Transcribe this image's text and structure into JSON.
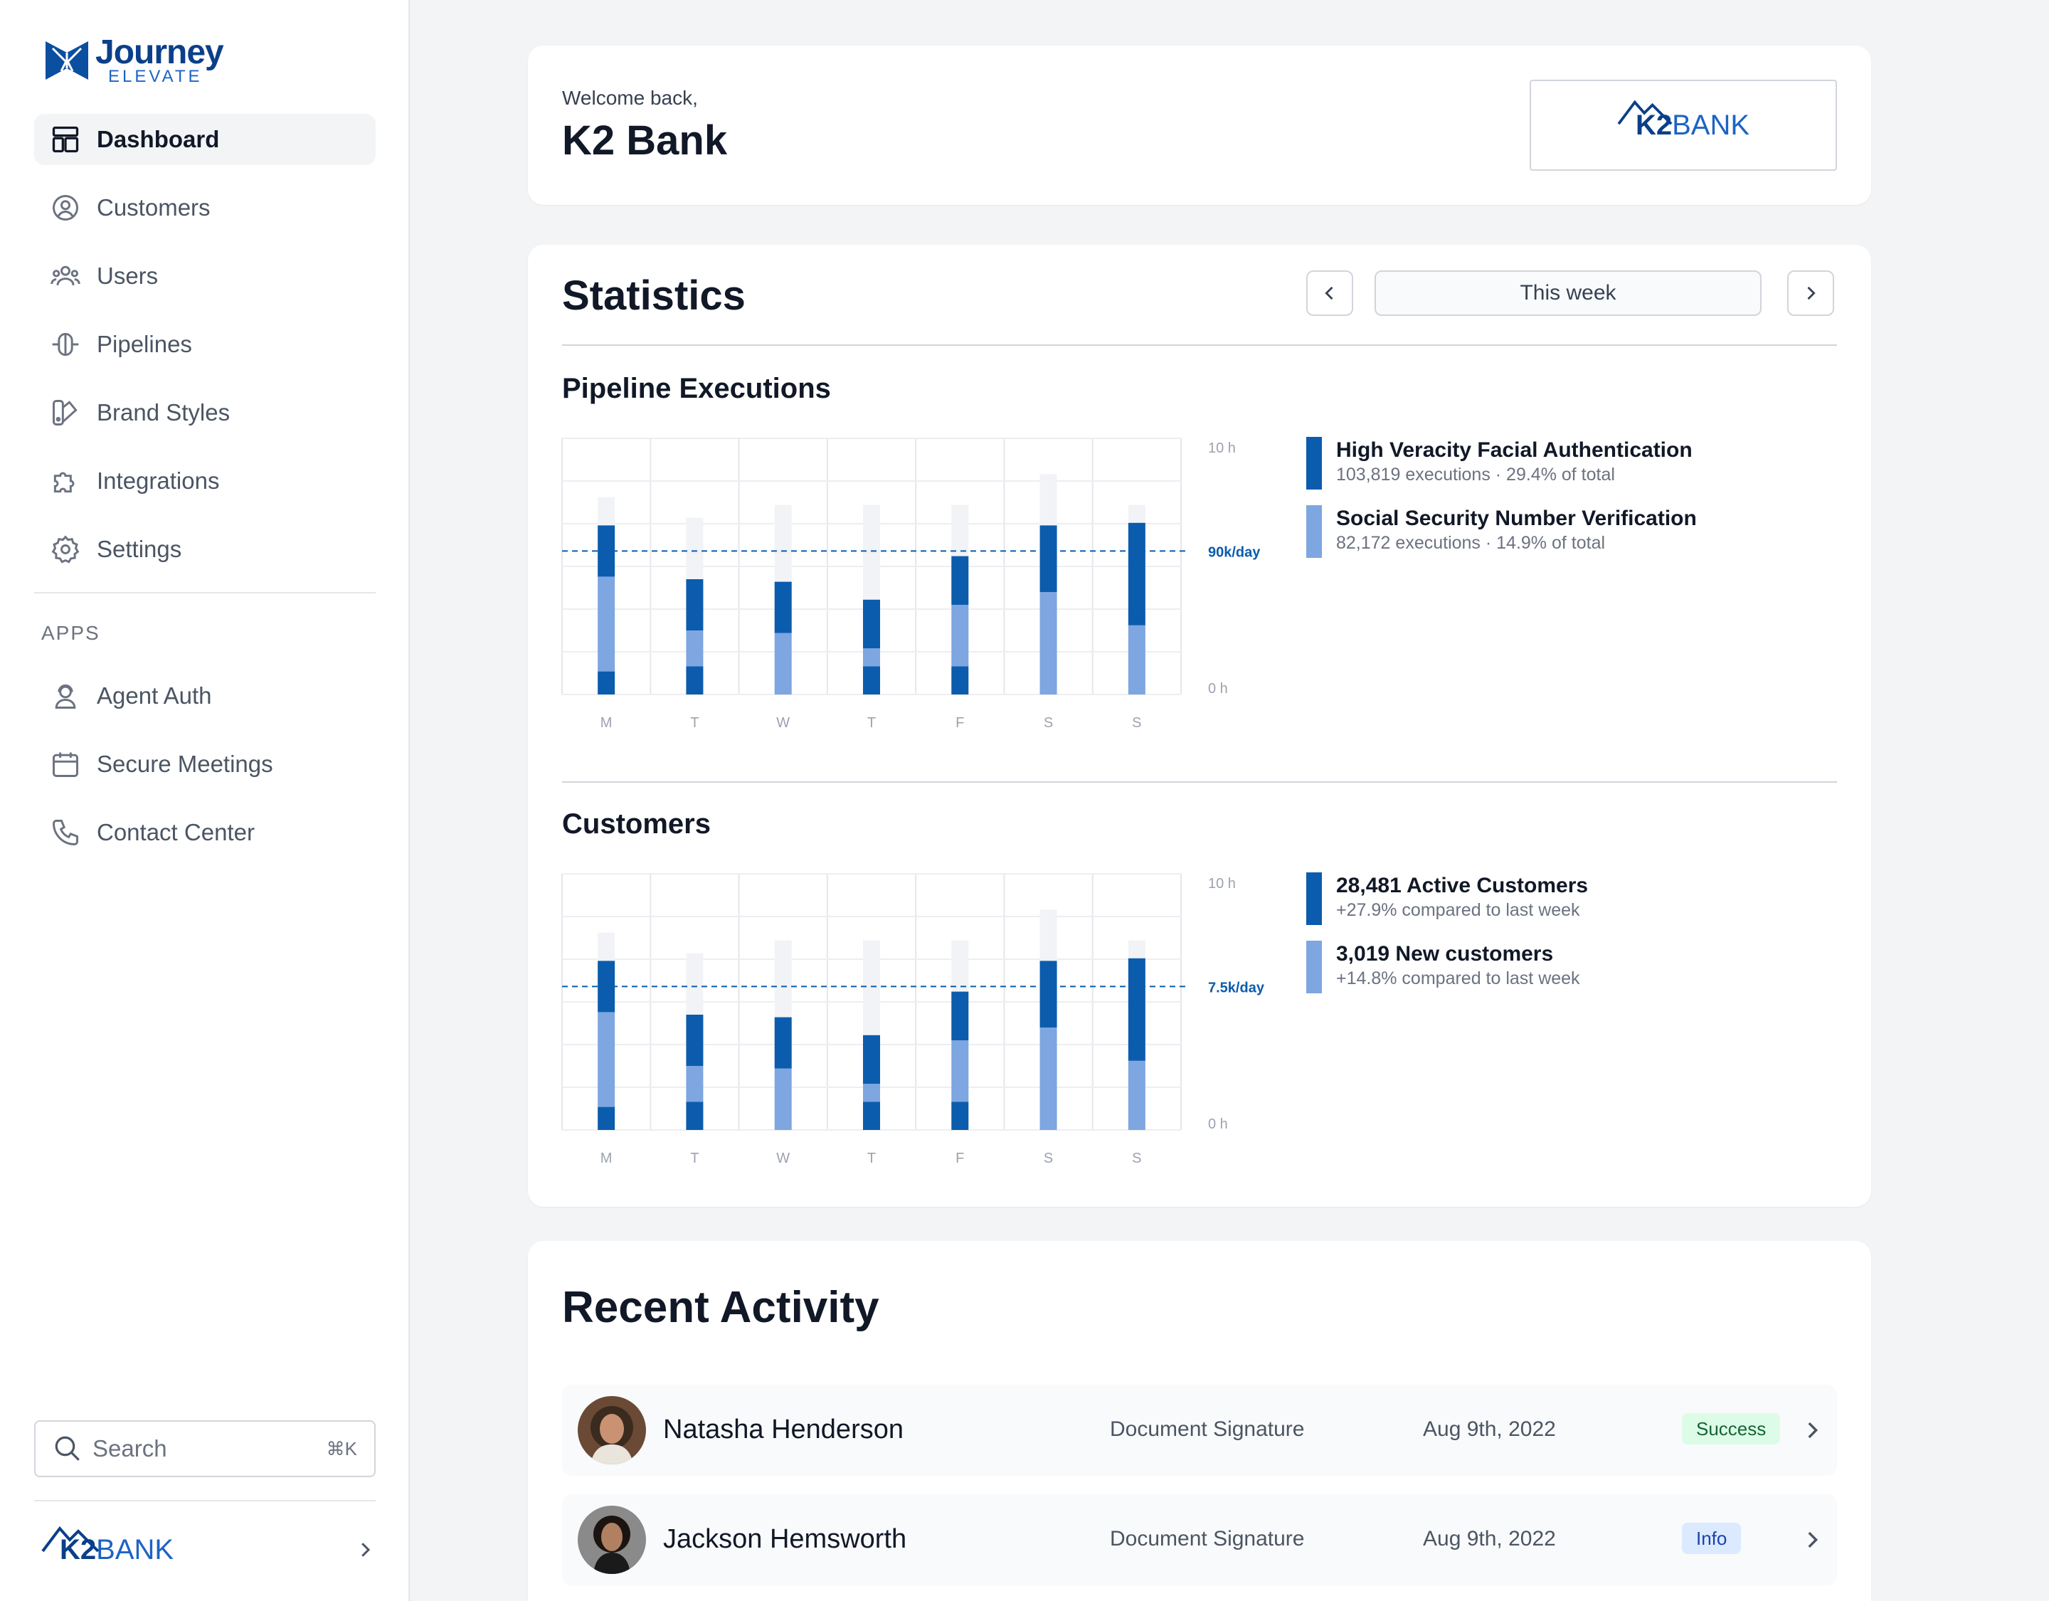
{
  "brand": {
    "name": "Journey",
    "sub": "ELEVATE"
  },
  "sidebar": {
    "items": [
      {
        "label": "Dashboard",
        "icon": "dashboard-icon"
      },
      {
        "label": "Customers",
        "icon": "user-circle-icon"
      },
      {
        "label": "Users",
        "icon": "users-icon"
      },
      {
        "label": "Pipelines",
        "icon": "pipeline-icon"
      },
      {
        "label": "Brand Styles",
        "icon": "swatch-icon"
      },
      {
        "label": "Integrations",
        "icon": "puzzle-icon"
      },
      {
        "label": "Settings",
        "icon": "gear-icon"
      }
    ],
    "apps_title": "APPS",
    "apps": [
      {
        "label": "Agent Auth",
        "icon": "agent-icon"
      },
      {
        "label": "Secure Meetings",
        "icon": "calendar-icon"
      },
      {
        "label": "Contact Center",
        "icon": "phone-icon"
      }
    ],
    "search": {
      "placeholder": "Search",
      "shortcut": "⌘K"
    },
    "org": {
      "bold": "K2",
      "thin": "BANK"
    }
  },
  "welcome": {
    "greeting": "Welcome back,",
    "company": "K2 Bank",
    "logo_bold": "K2",
    "logo_thin": "BANK"
  },
  "statistics": {
    "title": "Statistics",
    "period": "This week",
    "pipeline": {
      "title": "Pipeline Executions",
      "legend": [
        {
          "title": "High Veracity Facial Authentication",
          "sub": "103,819 executions · 29.4% of total",
          "color": "#0b5cad"
        },
        {
          "title": "Social Security Number Verification",
          "sub": "82,172 executions · 14.9% of total",
          "color": "#7ea6e0"
        }
      ]
    },
    "customers": {
      "title": "Customers",
      "legend": [
        {
          "title": "28,481 Active Customers",
          "sub": "+27.9% compared to last week",
          "color": "#0b5cad"
        },
        {
          "title": "3,019 New customers",
          "sub": "+14.8% compared to last week",
          "color": "#7ea6e0"
        }
      ]
    }
  },
  "chart_data": [
    {
      "type": "bar",
      "title": "Pipeline Executions",
      "categories": [
        "M",
        "T",
        "W",
        "T",
        "F",
        "S",
        "S"
      ],
      "y_ticks": [
        "10 h",
        "0 h"
      ],
      "ylim": [
        0,
        10
      ],
      "reference_line": {
        "value": 5.6,
        "label": "90k/day"
      },
      "totals": [
        7.7,
        6.9,
        7.4,
        7.4,
        7.4,
        8.6,
        7.4
      ],
      "series": [
        {
          "name": "High Veracity Facial Authentication",
          "color": "#0b5cad",
          "segments": [
            [
              0,
              0.9
            ],
            [
              6.6,
              4.6
            ]
          ]
        },
        {
          "name": "Social Security Number Verification",
          "color": "#7ea6e0",
          "segments": [
            [
              0.9,
              4.6
            ]
          ]
        }
      ],
      "stacks": [
        [
          [
            0,
            0.9,
            "dark"
          ],
          [
            0.9,
            4.6,
            "light"
          ],
          [
            4.6,
            6.6,
            "dark"
          ]
        ],
        [
          [
            0,
            1.1,
            "dark"
          ],
          [
            1.1,
            2.5,
            "light"
          ],
          [
            2.5,
            4.5,
            "dark"
          ]
        ],
        [
          [
            0,
            2.4,
            "light"
          ],
          [
            2.4,
            4.4,
            "dark"
          ]
        ],
        [
          [
            0,
            1.1,
            "dark"
          ],
          [
            1.1,
            1.8,
            "light"
          ],
          [
            1.8,
            3.7,
            "dark"
          ]
        ],
        [
          [
            0,
            1.1,
            "dark"
          ],
          [
            1.1,
            3.5,
            "light"
          ],
          [
            3.5,
            5.4,
            "dark"
          ]
        ],
        [
          [
            0,
            4.0,
            "light"
          ],
          [
            4.0,
            6.6,
            "dark"
          ]
        ],
        [
          [
            0,
            2.7,
            "light"
          ],
          [
            2.7,
            6.7,
            "dark"
          ]
        ]
      ]
    },
    {
      "type": "bar",
      "title": "Customers",
      "categories": [
        "M",
        "T",
        "W",
        "T",
        "F",
        "S",
        "S"
      ],
      "y_ticks": [
        "10 h",
        "0 h"
      ],
      "ylim": [
        0,
        10
      ],
      "reference_line": {
        "value": 5.6,
        "label": "7.5k/day"
      },
      "totals": [
        7.7,
        6.9,
        7.4,
        7.4,
        7.4,
        8.6,
        7.4
      ],
      "stacks": [
        [
          [
            0,
            0.9,
            "dark"
          ],
          [
            0.9,
            4.6,
            "light"
          ],
          [
            4.6,
            6.6,
            "dark"
          ]
        ],
        [
          [
            0,
            1.1,
            "dark"
          ],
          [
            1.1,
            2.5,
            "light"
          ],
          [
            2.5,
            4.5,
            "dark"
          ]
        ],
        [
          [
            0,
            2.4,
            "light"
          ],
          [
            2.4,
            4.4,
            "dark"
          ]
        ],
        [
          [
            0,
            1.1,
            "dark"
          ],
          [
            1.1,
            1.8,
            "light"
          ],
          [
            1.8,
            3.7,
            "dark"
          ]
        ],
        [
          [
            0,
            1.1,
            "dark"
          ],
          [
            1.1,
            3.5,
            "light"
          ],
          [
            3.5,
            5.4,
            "dark"
          ]
        ],
        [
          [
            0,
            4.0,
            "light"
          ],
          [
            4.0,
            6.6,
            "dark"
          ]
        ],
        [
          [
            0,
            2.7,
            "light"
          ],
          [
            2.7,
            6.7,
            "dark"
          ]
        ]
      ]
    }
  ],
  "activity": {
    "title": "Recent Activity",
    "rows": [
      {
        "name": "Natasha Henderson",
        "type": "Document Signature",
        "date": "Aug 9th, 2022",
        "status": "Success",
        "status_kind": "success"
      },
      {
        "name": "Jackson Hemsworth",
        "type": "Document Signature",
        "date": "Aug 9th, 2022",
        "status": "Info",
        "status_kind": "info"
      }
    ]
  },
  "colors": {
    "dark_bar": "#0b5cad",
    "light_bar": "#7ea6e0",
    "ghost_bar": "#f1f3f6",
    "accent": "#0b3f8a"
  }
}
